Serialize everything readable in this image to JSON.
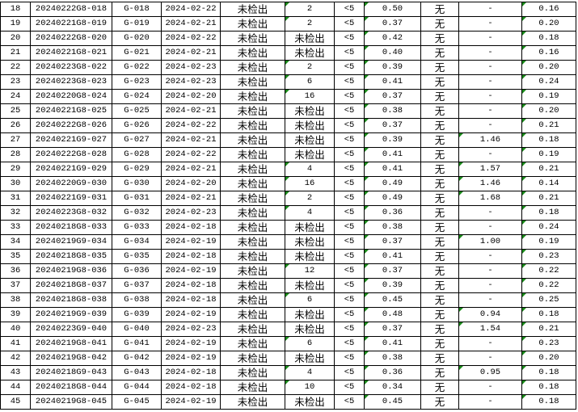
{
  "marker_color": "#1a8a1a",
  "rows": [
    [
      "18",
      "20240222G8-018",
      "G-018",
      "2024-02-22",
      "未检出",
      "2",
      "<5",
      "0.50",
      "无",
      "-",
      "0.16"
    ],
    [
      "19",
      "20240221G8-019",
      "G-019",
      "2024-02-21",
      "未检出",
      "2",
      "<5",
      "0.37",
      "无",
      "-",
      "0.20"
    ],
    [
      "20",
      "20240222G8-020",
      "G-020",
      "2024-02-22",
      "未检出",
      "未检出",
      "<5",
      "0.42",
      "无",
      "-",
      "0.18"
    ],
    [
      "21",
      "20240221G8-021",
      "G-021",
      "2024-02-21",
      "未检出",
      "未检出",
      "<5",
      "0.40",
      "无",
      "-",
      "0.16"
    ],
    [
      "22",
      "20240223G8-022",
      "G-022",
      "2024-02-23",
      "未检出",
      "2",
      "<5",
      "0.39",
      "无",
      "-",
      "0.20"
    ],
    [
      "23",
      "20240223G8-023",
      "G-023",
      "2024-02-23",
      "未检出",
      "6",
      "<5",
      "0.41",
      "无",
      "-",
      "0.24"
    ],
    [
      "24",
      "20240220G8-024",
      "G-024",
      "2024-02-20",
      "未检出",
      "16",
      "<5",
      "0.37",
      "无",
      "-",
      "0.19"
    ],
    [
      "25",
      "20240221G8-025",
      "G-025",
      "2024-02-21",
      "未检出",
      "未检出",
      "<5",
      "0.38",
      "无",
      "-",
      "0.20"
    ],
    [
      "26",
      "20240222G8-026",
      "G-026",
      "2024-02-22",
      "未检出",
      "未检出",
      "<5",
      "0.37",
      "无",
      "-",
      "0.21"
    ],
    [
      "27",
      "20240221G9-027",
      "G-027",
      "2024-02-21",
      "未检出",
      "未检出",
      "<5",
      "0.39",
      "无",
      "1.46",
      "0.18"
    ],
    [
      "28",
      "20240222G8-028",
      "G-028",
      "2024-02-22",
      "未检出",
      "未检出",
      "<5",
      "0.41",
      "无",
      "-",
      "0.19"
    ],
    [
      "29",
      "20240221G9-029",
      "G-029",
      "2024-02-21",
      "未检出",
      "4",
      "<5",
      "0.41",
      "无",
      "1.57",
      "0.21"
    ],
    [
      "30",
      "20240220G9-030",
      "G-030",
      "2024-02-20",
      "未检出",
      "16",
      "<5",
      "0.49",
      "无",
      "1.46",
      "0.14"
    ],
    [
      "31",
      "20240221G9-031",
      "G-031",
      "2024-02-21",
      "未检出",
      "2",
      "<5",
      "0.49",
      "无",
      "1.68",
      "0.21"
    ],
    [
      "32",
      "20240223G8-032",
      "G-032",
      "2024-02-23",
      "未检出",
      "4",
      "<5",
      "0.36",
      "无",
      "-",
      "0.18"
    ],
    [
      "33",
      "20240218G8-033",
      "G-033",
      "2024-02-18",
      "未检出",
      "未检出",
      "<5",
      "0.38",
      "无",
      "-",
      "0.24"
    ],
    [
      "34",
      "20240219G9-034",
      "G-034",
      "2024-02-19",
      "未检出",
      "未检出",
      "<5",
      "0.37",
      "无",
      "1.00",
      "0.19"
    ],
    [
      "35",
      "20240218G8-035",
      "G-035",
      "2024-02-18",
      "未检出",
      "未检出",
      "<5",
      "0.41",
      "无",
      "-",
      "0.23"
    ],
    [
      "36",
      "20240219G8-036",
      "G-036",
      "2024-02-19",
      "未检出",
      "12",
      "<5",
      "0.37",
      "无",
      "-",
      "0.22"
    ],
    [
      "37",
      "20240218G8-037",
      "G-037",
      "2024-02-18",
      "未检出",
      "未检出",
      "<5",
      "0.39",
      "无",
      "-",
      "0.22"
    ],
    [
      "38",
      "20240218G8-038",
      "G-038",
      "2024-02-18",
      "未检出",
      "6",
      "<5",
      "0.45",
      "无",
      "-",
      "0.25"
    ],
    [
      "39",
      "20240219G9-039",
      "G-039",
      "2024-02-19",
      "未检出",
      "未检出",
      "<5",
      "0.48",
      "无",
      "0.94",
      "0.18"
    ],
    [
      "40",
      "20240223G9-040",
      "G-040",
      "2024-02-23",
      "未检出",
      "未检出",
      "<5",
      "0.37",
      "无",
      "1.54",
      "0.21"
    ],
    [
      "41",
      "20240219G8-041",
      "G-041",
      "2024-02-19",
      "未检出",
      "6",
      "<5",
      "0.41",
      "无",
      "-",
      "0.23"
    ],
    [
      "42",
      "20240219G8-042",
      "G-042",
      "2024-02-19",
      "未检出",
      "未检出",
      "<5",
      "0.38",
      "无",
      "-",
      "0.20"
    ],
    [
      "43",
      "20240218G9-043",
      "G-043",
      "2024-02-18",
      "未检出",
      "4",
      "<5",
      "0.36",
      "无",
      "0.95",
      "0.18"
    ],
    [
      "44",
      "20240218G8-044",
      "G-044",
      "2024-02-18",
      "未检出",
      "10",
      "<5",
      "0.34",
      "无",
      "-",
      "0.18"
    ],
    [
      "45",
      "20240219G8-045",
      "G-045",
      "2024-02-19",
      "未检出",
      "未检出",
      "<5",
      "0.45",
      "无",
      "-",
      "0.18"
    ]
  ]
}
